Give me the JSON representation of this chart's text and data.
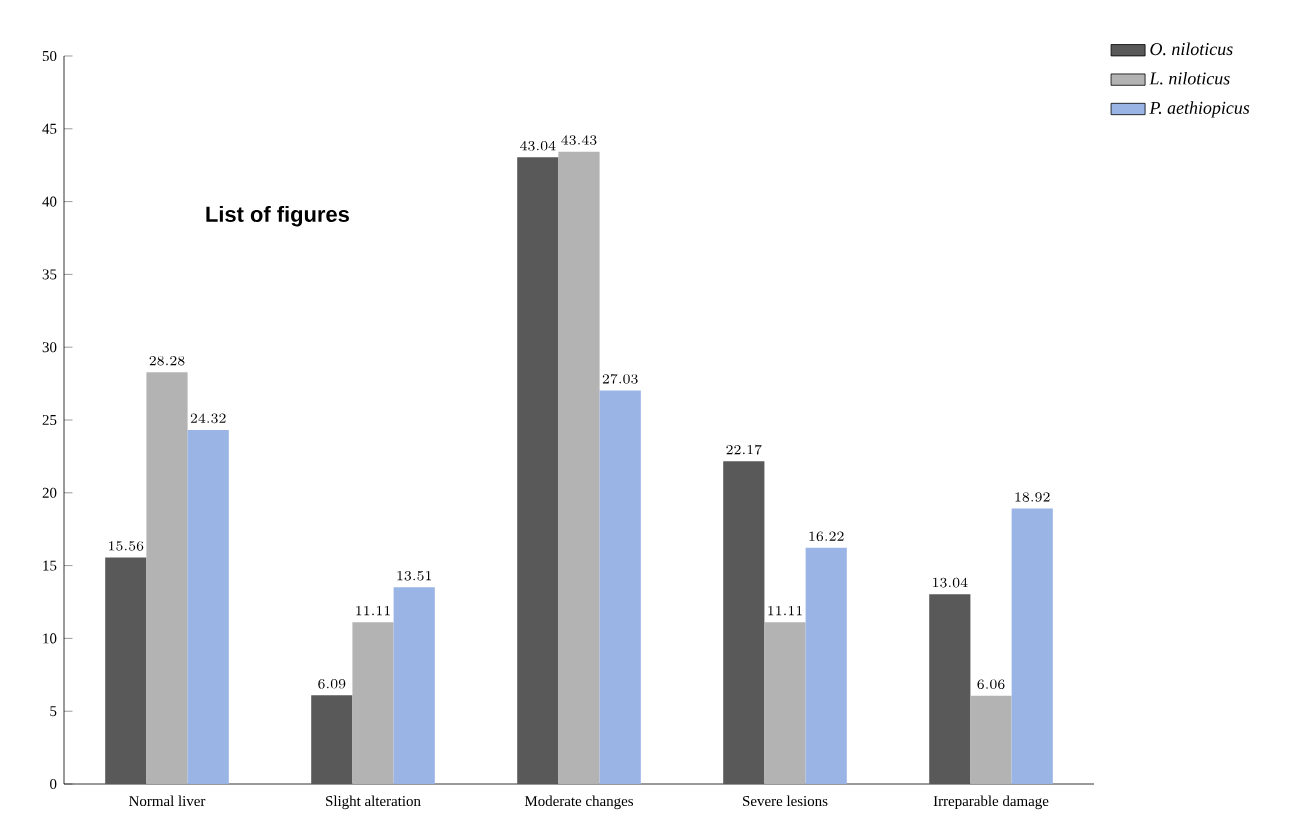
{
  "chart_data": {
    "type": "bar",
    "categories": [
      "Normal liver",
      "Slight alteration",
      "Moderate changes",
      "Severe lesions",
      "Irreparable damage"
    ],
    "series": [
      {
        "name": "O. niloticus",
        "color": "#595959",
        "values": [
          15.56,
          6.09,
          43.04,
          22.17,
          13.04
        ]
      },
      {
        "name": "L. niloticus",
        "color": "#b3b3b3",
        "values": [
          28.28,
          11.11,
          43.43,
          11.11,
          6.06
        ]
      },
      {
        "name": "P. aethiopicus",
        "color": "#9ab4e6",
        "values": [
          24.32,
          13.51,
          27.03,
          16.22,
          18.92
        ]
      }
    ],
    "ylim": [
      0,
      50
    ],
    "yticks": [
      0,
      5,
      10,
      15,
      20,
      25,
      30,
      35,
      40,
      45,
      50
    ],
    "data_labels": true,
    "legend": "top right",
    "grid": false,
    "annotations": [
      "List of figures"
    ]
  }
}
